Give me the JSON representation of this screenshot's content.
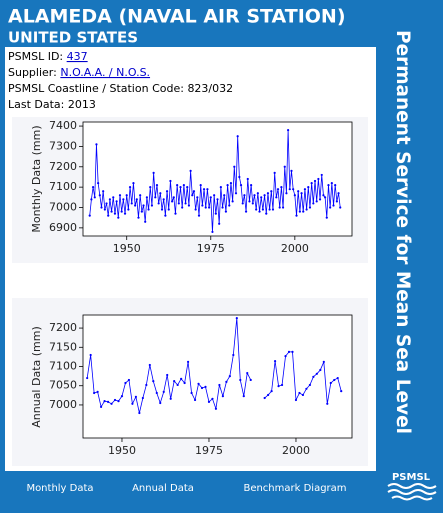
{
  "header": {
    "title": "ALAMEDA (NAVAL AIR STATION)",
    "subtitle": "UNITED STATES"
  },
  "sidebar": "Permanent Service for Mean Sea Level",
  "info": [
    {
      "label": "PSMSL ID:",
      "value": "437"
    },
    {
      "label": "Supplier:",
      "value": "N.O.A.A. / N.O.S."
    },
    {
      "label": "PSMSL Coastline / Station Code:",
      "value": "823/032"
    },
    {
      "label": "Last Data:",
      "value": "2013"
    }
  ],
  "chart_data": [
    {
      "type": "line",
      "y_label": "Monthly Data (mm)",
      "color": "#0000ff",
      "x": [
        1939,
        1939.5,
        1940,
        1940.5,
        1941,
        1941.5,
        1942,
        1942.5,
        1943,
        1943.5,
        1944,
        1944.5,
        1945,
        1945.5,
        1946,
        1946.5,
        1947,
        1947.5,
        1948,
        1948.5,
        1949,
        1949.5,
        1950,
        1950.5,
        1951,
        1951.5,
        1952,
        1952.5,
        1953,
        1953.5,
        1954,
        1954.5,
        1955,
        1955.5,
        1956,
        1956.5,
        1957,
        1957.5,
        1958,
        1958.5,
        1959,
        1959.5,
        1960,
        1960.5,
        1961,
        1961.5,
        1962,
        1962.5,
        1963,
        1963.5,
        1964,
        1964.5,
        1965,
        1965.5,
        1966,
        1966.5,
        1967,
        1967.5,
        1968,
        1968.5,
        1969,
        1969.5,
        1970,
        1970.5,
        1971,
        1971.5,
        1972,
        1972.5,
        1973,
        1973.5,
        1974,
        1974.5,
        1975,
        1975.5,
        1976,
        1976.5,
        1977,
        1977.5,
        1978,
        1978.5,
        1979,
        1979.5,
        1980,
        1980.5,
        1981,
        1981.5,
        1982,
        1982.5,
        1983,
        1983.5,
        1984,
        1984.5,
        1985,
        1985.5,
        1986,
        1986.5,
        1987,
        1987.5,
        1988,
        1988.5,
        1989,
        1989.5,
        1990,
        1990.5,
        1991,
        1991.5,
        1992,
        1992.5,
        1993,
        1993.5,
        1994,
        1994.5,
        1995,
        1995.5,
        1996,
        1996.5,
        1997,
        1997.5,
        1998,
        1998.5,
        1999,
        1999.5,
        2000,
        2000.5,
        2001,
        2001.5,
        2002,
        2002.5,
        2003,
        2003.5,
        2004,
        2004.5,
        2005,
        2005.5,
        2006,
        2006.5,
        2007,
        2007.5,
        2008,
        2008.5,
        2009,
        2009.5,
        2010,
        2010.5,
        2011,
        2011.5,
        2012,
        2012.5,
        2013,
        2013.5
      ],
      "values": [
        6960,
        7040,
        7100,
        7050,
        7310,
        7120,
        7060,
        7000,
        7080,
        6990,
        7020,
        6960,
        7040,
        6980,
        7050,
        6970,
        7030,
        6950,
        7060,
        6980,
        7040,
        6970,
        7060,
        6990,
        7100,
        7020,
        7120,
        7010,
        7040,
        6950,
        7060,
        6980,
        7010,
        6930,
        7050,
        6990,
        7100,
        7010,
        7170,
        7050,
        7110,
        7020,
        7070,
        6990,
        7040,
        6960,
        7080,
        6990,
        7130,
        7030,
        7050,
        6970,
        7110,
        7020,
        7100,
        7000,
        7110,
        7020,
        7100,
        7010,
        7180,
        7060,
        7080,
        6990,
        7050,
        6960,
        7110,
        7010,
        7090,
        7000,
        7090,
        7000,
        7050,
        6880,
        7060,
        6970,
        7040,
        6920,
        7100,
        7000,
        7060,
        6980,
        7110,
        7010,
        7120,
        7030,
        7200,
        7070,
        7350,
        7150,
        7110,
        7020,
        7060,
        6980,
        7140,
        7030,
        7110,
        7020,
        7060,
        6990,
        7070,
        6980,
        7050,
        6990,
        7060,
        6970,
        7070,
        6990,
        7080,
        6990,
        7170,
        7050,
        7090,
        7000,
        7100,
        7000,
        7200,
        7070,
        7380,
        7090,
        7180,
        7090,
        7060,
        6960,
        7080,
        6980,
        7070,
        6980,
        7090,
        6990,
        7100,
        7000,
        7120,
        7020,
        7130,
        7030,
        7140,
        7040,
        7160,
        7060,
        7050,
        6950,
        7110,
        7000,
        7120,
        7010,
        7110,
        7030,
        7070,
        7000
      ],
      "xlim": [
        1937,
        2017
      ],
      "ylim": [
        6860,
        7420
      ],
      "xticks": [
        1950,
        1975,
        2000
      ],
      "yticks": [
        6900,
        7000,
        7100,
        7200,
        7300,
        7400
      ]
    },
    {
      "type": "line",
      "y_label": "Annual Data (mm)",
      "color": "#0000ff",
      "x": [
        1940,
        1941,
        1942,
        1943,
        1944,
        1945,
        1946,
        1947,
        1948,
        1949,
        1950,
        1951,
        1952,
        1953,
        1954,
        1955,
        1956,
        1957,
        1958,
        1959,
        1960,
        1961,
        1962,
        1963,
        1964,
        1965,
        1966,
        1967,
        1968,
        1969,
        1970,
        1971,
        1972,
        1973,
        1974,
        1975,
        1976,
        1977,
        1978,
        1979,
        1980,
        1981,
        1982,
        1983,
        1984,
        1985,
        1986,
        1987,
        1988,
        1989,
        1990,
        1991,
        1992,
        1993,
        1994,
        1995,
        1996,
        1997,
        1998,
        1999,
        2000,
        2001,
        2002,
        2003,
        2004,
        2005,
        2006,
        2007,
        2008,
        2009,
        2010,
        2011,
        2012,
        2013
      ],
      "values": [
        7070,
        7130,
        7031,
        7034,
        6995,
        7010,
        7008,
        7003,
        7013,
        7010,
        7023,
        7057,
        7065,
        7003,
        7021,
        6979,
        7018,
        7052,
        7104,
        7062,
        7031,
        7005,
        7034,
        7078,
        7016,
        7062,
        7052,
        7068,
        7057,
        7112,
        7031,
        7013,
        7055,
        7044,
        7047,
        7008,
        7016,
        6990,
        7052,
        7023,
        7060,
        7075,
        7130,
        7226,
        7065,
        7023,
        7083,
        7065,
        null,
        null,
        null,
        7018,
        7026,
        7036,
        7114,
        7049,
        7052,
        7127,
        7138,
        7138,
        7013,
        7031,
        7026,
        7042,
        7052,
        7073,
        7081,
        7091,
        7112,
        7003,
        7057,
        7065,
        7070,
        7036
      ],
      "xlim": [
        1938.8,
        2016.1
      ],
      "ylim": [
        6914,
        7234
      ],
      "xticks": [
        1950,
        1975,
        2000
      ],
      "yticks": [
        7000,
        7050,
        7100,
        7150,
        7200
      ]
    }
  ],
  "footer": {
    "links": [
      "Monthly Data",
      "Annual Data",
      "Benchmark Diagram"
    ],
    "logo": "PSMSL"
  }
}
